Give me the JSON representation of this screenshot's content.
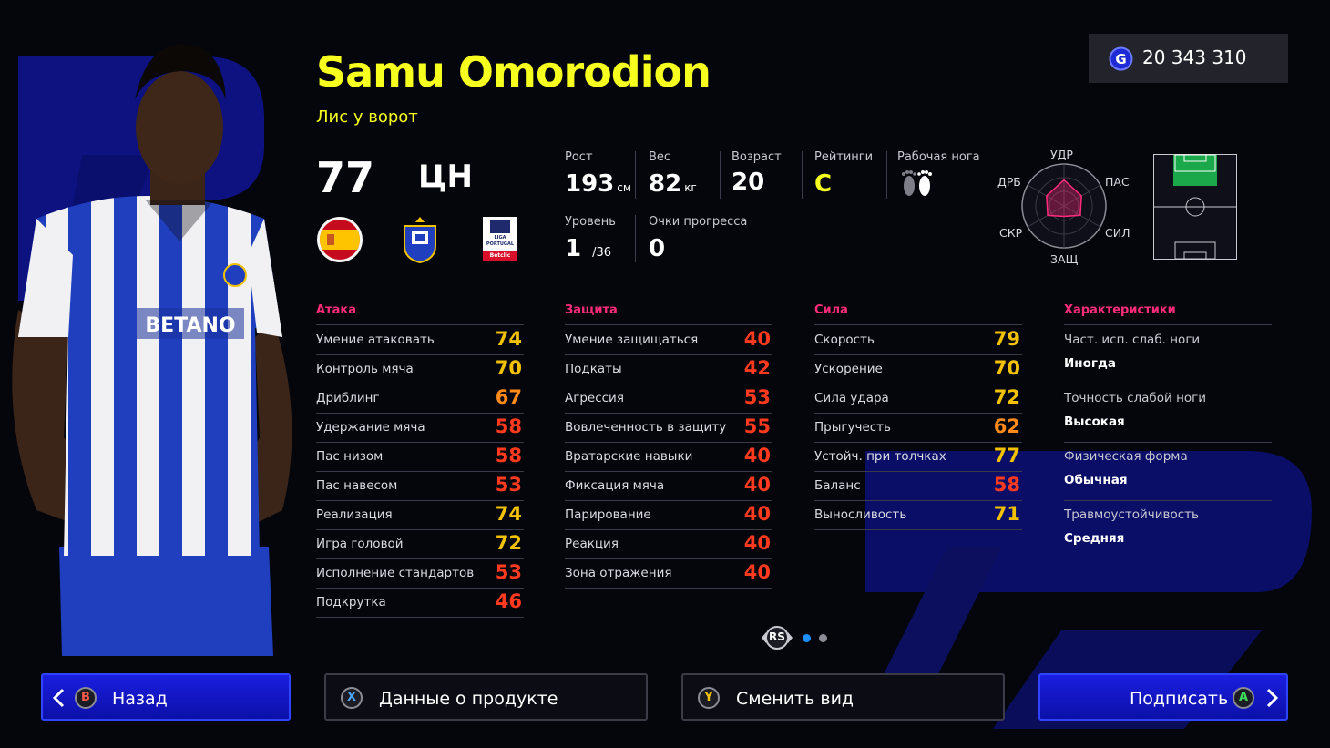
{
  "gp": {
    "icon": "gp-coin-icon",
    "letter": "G",
    "amount": "20 343 310"
  },
  "player": {
    "name": "Samu Omorodion",
    "playing_style": "Лис у ворот",
    "overall": "77",
    "position": "ЦН",
    "nation_icon": "spain-flag-icon",
    "club_icon": "fc-porto-crest-icon",
    "league_icon": "liga-portugal-betclic-icon",
    "league_logo_text": [
      "LIGA",
      "PORTUGAL",
      "Betclic"
    ]
  },
  "info": {
    "height": {
      "label": "Рост",
      "value": "193",
      "unit": "см"
    },
    "weight": {
      "label": "Вес",
      "value": "82",
      "unit": "кг"
    },
    "age": {
      "label": "Возраст",
      "value": "20"
    },
    "condition": {
      "label": "Рейтинги",
      "value": "C"
    },
    "foot": {
      "label": "Рабочая нога",
      "icon": "feet-icon"
    },
    "level": {
      "label": "Уровень",
      "value": "1",
      "max": "/36"
    },
    "progress": {
      "label": "Очки прогресса",
      "value": "0"
    }
  },
  "radar": {
    "labels": {
      "top": "УДР",
      "top_left": "ДРБ",
      "top_right": "ПАС",
      "bottom_left": "СКР",
      "bottom_right": "СИЛ",
      "bottom": "ЗАЩ"
    },
    "values": {
      "shooting": 0.62,
      "passing": 0.48,
      "physical": 0.45,
      "defense": 0.25,
      "speed": 0.45,
      "dribbling": 0.48
    },
    "color": "#ff2b7b"
  },
  "attack": {
    "title": "Атака",
    "stats": [
      {
        "label": "Умение атаковать",
        "value": "74"
      },
      {
        "label": "Контроль мяча",
        "value": "70"
      },
      {
        "label": "Дриблинг",
        "value": "67"
      },
      {
        "label": "Удержание мяча",
        "value": "58"
      },
      {
        "label": "Пас низом",
        "value": "58"
      },
      {
        "label": "Пас навесом",
        "value": "53"
      },
      {
        "label": "Реализация",
        "value": "74"
      },
      {
        "label": "Игра головой",
        "value": "72"
      },
      {
        "label": "Исполнение стандартов",
        "value": "53"
      },
      {
        "label": "Подкрутка",
        "value": "46"
      }
    ]
  },
  "defense": {
    "title": "Защита",
    "stats": [
      {
        "label": "Умение защищаться",
        "value": "40"
      },
      {
        "label": "Подкаты",
        "value": "42"
      },
      {
        "label": "Агрессия",
        "value": "53"
      },
      {
        "label": "Вовлеченность в защиту",
        "value": "55"
      },
      {
        "label": "Вратарские навыки",
        "value": "40"
      },
      {
        "label": "Фиксация мяча",
        "value": "40"
      },
      {
        "label": "Парирование",
        "value": "40"
      },
      {
        "label": "Реакция",
        "value": "40"
      },
      {
        "label": "Зона отражения",
        "value": "40"
      }
    ]
  },
  "physical": {
    "title": "Сила",
    "stats": [
      {
        "label": "Скорость",
        "value": "79"
      },
      {
        "label": "Ускорение",
        "value": "70"
      },
      {
        "label": "Сила удара",
        "value": "72"
      },
      {
        "label": "Прыгучесть",
        "value": "62"
      },
      {
        "label": "Устойч. при толчках",
        "value": "77"
      },
      {
        "label": "Баланс",
        "value": "58"
      },
      {
        "label": "Выносливость",
        "value": "71"
      }
    ]
  },
  "features": {
    "title": "Характеристики",
    "items": [
      {
        "label": "Част. исп. слаб. ноги",
        "value": "Иногда"
      },
      {
        "label": "Точность слабой ноги",
        "value": "Высокая"
      },
      {
        "label": "Физическая форма",
        "value": "Обычная"
      },
      {
        "label": "Травмоустойчивость",
        "value": "Средняя"
      }
    ]
  },
  "pager": {
    "key": "RS",
    "pages": 2,
    "current": 1
  },
  "buttons": {
    "back": {
      "key": "B",
      "label": "Назад"
    },
    "product": {
      "key": "X",
      "label": "Данные о продукте"
    },
    "view": {
      "key": "Y",
      "label": "Сменить вид"
    },
    "sign": {
      "key": "A",
      "label": "Подписать"
    }
  },
  "colors": {
    "accent_yellow": "#f6ff1d",
    "section_pink": "#ff2b7b",
    "stat_yellow": "#f2c200",
    "stat_orange": "#ff8a1a",
    "stat_red": "#ff3a1f",
    "button_blue": "#1418d8"
  }
}
